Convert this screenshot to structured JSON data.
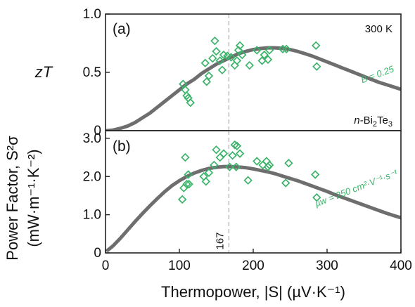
{
  "colors": {
    "points": "#3cb36a",
    "model": "#6e6e6e",
    "guide": "#bdbdbd"
  },
  "figure": {
    "xlabel": "Thermopower, |S| (µV·K⁻¹)"
  },
  "chart_data": [
    {
      "type": "scatter",
      "panel_label": "(a)",
      "ylabel": "zT",
      "xlim": [
        0,
        400
      ],
      "ylim": [
        0,
        1.0
      ],
      "yticks": [
        "0",
        "0.5",
        "1.0"
      ],
      "xticks": [],
      "temperature_label": "300 K",
      "material_label": {
        "prefix": "n-",
        "base": "Bi",
        "sub1": "2",
        "mid": "Te",
        "sub2": "3"
      },
      "model_label": "B = 0.25",
      "guide_x": 167,
      "model_curve": {
        "x": [
          2,
          10,
          20,
          30,
          40,
          50,
          60,
          70,
          80,
          90,
          100,
          110,
          120,
          130,
          140,
          150,
          160,
          170,
          180,
          190,
          200,
          210,
          220,
          230,
          240,
          250,
          260,
          270,
          280,
          290,
          300,
          310,
          320,
          330,
          340,
          350,
          360,
          370,
          380,
          390,
          400
        ],
        "y": [
          0.0,
          0.005,
          0.02,
          0.04,
          0.07,
          0.11,
          0.15,
          0.2,
          0.25,
          0.3,
          0.35,
          0.4,
          0.44,
          0.49,
          0.53,
          0.57,
          0.6,
          0.63,
          0.66,
          0.68,
          0.695,
          0.705,
          0.71,
          0.71,
          0.705,
          0.695,
          0.68,
          0.66,
          0.64,
          0.615,
          0.59,
          0.565,
          0.54,
          0.515,
          0.49,
          0.465,
          0.44,
          0.415,
          0.395,
          0.375,
          0.355
        ]
      },
      "points": {
        "x": [
          105,
          108,
          110,
          112,
          115,
          135,
          137,
          140,
          145,
          148,
          150,
          155,
          158,
          160,
          165,
          170,
          175,
          178,
          180,
          182,
          185,
          195,
          205,
          212,
          215,
          220,
          222,
          240,
          245,
          285,
          286
        ],
        "y": [
          0.4,
          0.35,
          0.3,
          0.28,
          0.24,
          0.58,
          0.42,
          0.47,
          0.62,
          0.77,
          0.68,
          0.6,
          0.52,
          0.65,
          0.64,
          0.63,
          0.56,
          0.6,
          0.69,
          0.73,
          0.65,
          0.56,
          0.69,
          0.6,
          0.65,
          0.61,
          0.69,
          0.7,
          0.7,
          0.73,
          0.55
        ]
      }
    },
    {
      "type": "scatter",
      "panel_label": "(b)",
      "ylabel": "Power Factor, S²σ (mW·m⁻¹·K⁻²)",
      "ylabel_line1": "Power Factor, S²σ",
      "ylabel_line2": "(mW·m⁻¹·K⁻²)",
      "xlim": [
        0,
        400
      ],
      "ylim": [
        0,
        3.2
      ],
      "yticks": [
        "0",
        "1.0",
        "2.0",
        "3.0"
      ],
      "xticks": [
        "0",
        "100",
        "200",
        "300",
        "400"
      ],
      "model_label": "µw = 250 cm²·V⁻¹·s⁻¹",
      "guide_x": 167,
      "guide_label": "167",
      "model_curve": {
        "x": [
          3,
          10,
          20,
          30,
          40,
          50,
          60,
          70,
          80,
          90,
          100,
          110,
          120,
          130,
          140,
          150,
          160,
          170,
          180,
          190,
          200,
          210,
          220,
          230,
          240,
          250,
          260,
          270,
          280,
          290,
          300,
          310,
          320,
          330,
          340,
          350,
          360,
          370,
          380,
          390,
          400
        ],
        "y": [
          0.07,
          0.18,
          0.38,
          0.6,
          0.82,
          1.03,
          1.23,
          1.42,
          1.6,
          1.76,
          1.89,
          2.0,
          2.09,
          2.16,
          2.21,
          2.24,
          2.26,
          2.26,
          2.25,
          2.23,
          2.2,
          2.16,
          2.12,
          2.07,
          2.01,
          1.95,
          1.89,
          1.82,
          1.75,
          1.68,
          1.61,
          1.53,
          1.46,
          1.39,
          1.32,
          1.25,
          1.18,
          1.11,
          1.04,
          0.98,
          0.92
        ]
      },
      "points": {
        "x": [
          104,
          106,
          108,
          110,
          112,
          113,
          133,
          136,
          140,
          147,
          150,
          155,
          160,
          168,
          172,
          175,
          177,
          178,
          182,
          193,
          205,
          213,
          218,
          220,
          222,
          244,
          248,
          284,
          286
        ],
        "y": [
          1.4,
          1.7,
          2.5,
          1.8,
          2.05,
          1.8,
          2.0,
          1.87,
          2.1,
          2.3,
          2.7,
          2.5,
          2.6,
          2.25,
          2.55,
          2.83,
          2.25,
          2.8,
          2.6,
          1.9,
          2.4,
          2.3,
          2.4,
          2.25,
          2.3,
          1.83,
          2.35,
          2.05,
          1.45
        ]
      }
    }
  ]
}
